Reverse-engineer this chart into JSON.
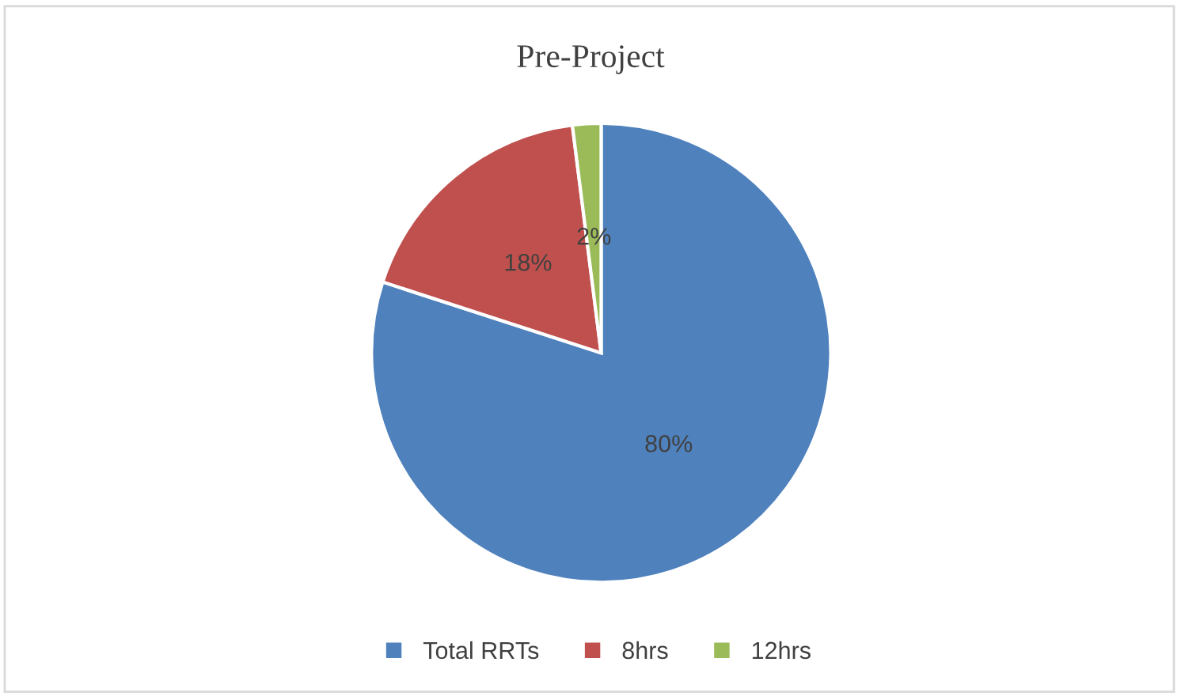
{
  "chart_data": {
    "type": "pie",
    "title": "Pre-Project",
    "categories": [
      "Total RRTs",
      "8hrs",
      "12hrs"
    ],
    "values": [
      80,
      18,
      2
    ],
    "colors": [
      "#4f81bd",
      "#c0504d",
      "#9bbb59"
    ],
    "value_labels": [
      "80%",
      "18%",
      "2%"
    ],
    "legend": "bottom"
  }
}
